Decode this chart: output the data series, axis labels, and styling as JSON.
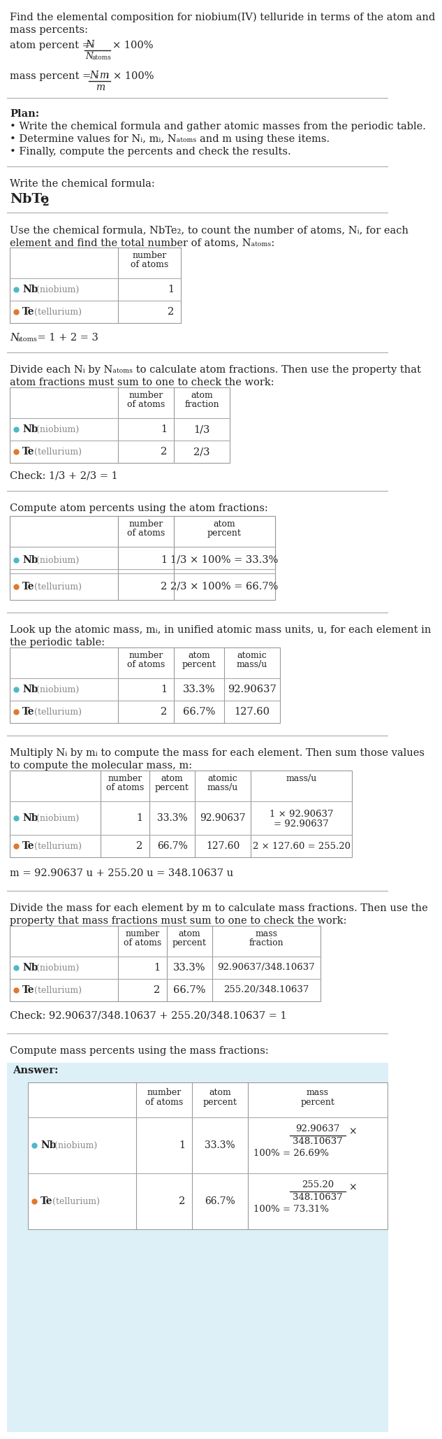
{
  "title_line1": "Find the elemental composition for niobium(IV) telluride in terms of the atom and",
  "title_line2": "mass percents:",
  "plan_header": "Plan:",
  "plan_bullets": [
    "Write the chemical formula and gather atomic masses from the periodic table.",
    "Determine values for Nᵢ, mᵢ, Nₐₜₒₘₛ and m using these items.",
    "Finally, compute the percents and check the results."
  ],
  "section1_text": "Write the chemical formula:",
  "section2_line1": "Use the chemical formula, NbTe₂, to count the number of atoms, Nᵢ, for each",
  "section2_line2": "element and find the total number of atoms, Nₐₜₒₘₛ:",
  "table1_rows": [
    [
      "Nb",
      " (niobium)",
      "1"
    ],
    [
      "Te",
      " (tellurium)",
      "2"
    ]
  ],
  "natoms_eq1": "N",
  "natoms_eq2": "atoms",
  "natoms_eq3": " = 1 + 2 = 3",
  "section3_line1": "Divide each Nᵢ by Nₐₜₒₘₛ to calculate atom fractions. Then use the property that",
  "section3_line2": "atom fractions must sum to one to check the work:",
  "table2_rows": [
    [
      "Nb",
      " (niobium)",
      "1",
      "1/3"
    ],
    [
      "Te",
      " (tellurium)",
      "2",
      "2/3"
    ]
  ],
  "check1": "Check: 1/3 + 2/3 = 1",
  "section4_text": "Compute atom percents using the atom fractions:",
  "table3_rows": [
    [
      "Nb",
      " (niobium)",
      "1",
      "1/3 × 100% = 33.3%"
    ],
    [
      "Te",
      " (tellurium)",
      "2",
      "2/3 × 100% = 66.7%"
    ]
  ],
  "section5_line1": "Look up the atomic mass, mᵢ, in unified atomic mass units, u, for each element in",
  "section5_line2": "the periodic table:",
  "table4_rows": [
    [
      "Nb",
      " (niobium)",
      "1",
      "33.3%",
      "92.90637"
    ],
    [
      "Te",
      " (tellurium)",
      "2",
      "66.7%",
      "127.60"
    ]
  ],
  "section6_line1": "Multiply Nᵢ by mᵢ to compute the mass for each element. Then sum those values",
  "section6_line2": "to compute the molecular mass, m:",
  "table5_rows_nb": [
    "Nb",
    " (niobium)",
    "1",
    "33.3%",
    "92.90637",
    "1 × 92.90637",
    "= 92.90637"
  ],
  "table5_rows_te": [
    "Te",
    " (tellurium)",
    "2",
    "66.7%",
    "127.60",
    "2 × 127.60 = 255.20"
  ],
  "mass_eq": "m = 92.90637 u + 255.20 u = 348.10637 u",
  "section7_line1": "Divide the mass for each element by m to calculate mass fractions. Then use the",
  "section7_line2": "property that mass fractions must sum to one to check the work:",
  "table6_rows": [
    [
      "Nb",
      " (niobium)",
      "1",
      "33.3%",
      "92.90637/348.10637"
    ],
    [
      "Te",
      " (tellurium)",
      "2",
      "66.7%",
      "255.20/348.10637"
    ]
  ],
  "check2": "Check: 92.90637/348.10637 + 255.20/348.10637 = 1",
  "section8_text": "Compute mass percents using the mass fractions:",
  "answer_header": "Answer:",
  "nb_color": "#4db8c8",
  "te_color": "#e07830",
  "bg_color": "#ddf0f8",
  "white": "#ffffff",
  "text_color": "#222222",
  "gray_text": "#888888",
  "line_color": "#aaaaaa",
  "border_color": "#999999"
}
